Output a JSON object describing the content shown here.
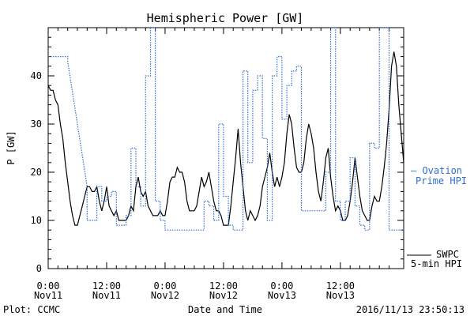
{
  "chart_data": {
    "type": "line",
    "title": "Hemispheric Power [GW]",
    "xlabel": "Date and Time",
    "ylabel": "P [GW]",
    "ylim": [
      0,
      50
    ],
    "xlim_hours": [
      0,
      72
    ],
    "yticks": [
      0,
      10,
      20,
      30,
      40
    ],
    "xticks": [
      {
        "t": 0,
        "time": "0:00",
        "date": "Nov11"
      },
      {
        "t": 12,
        "time": "12:00",
        "date": "Nov11"
      },
      {
        "t": 24,
        "time": "0:00",
        "date": "Nov12"
      },
      {
        "t": 36,
        "time": "12:00",
        "date": "Nov12"
      },
      {
        "t": 48,
        "time": "0:00",
        "date": "Nov13"
      },
      {
        "t": 60,
        "time": "12:00",
        "date": "Nov13"
      }
    ],
    "series": [
      {
        "name": "SWPC 5-min HPI",
        "color": "#000000",
        "style": "solid",
        "points": [
          [
            0,
            38
          ],
          [
            0.5,
            37
          ],
          [
            1,
            37
          ],
          [
            1.5,
            35
          ],
          [
            2,
            34
          ],
          [
            2.5,
            30
          ],
          [
            3,
            27
          ],
          [
            3.5,
            22
          ],
          [
            4,
            18
          ],
          [
            4.5,
            14
          ],
          [
            5,
            11
          ],
          [
            5.5,
            9
          ],
          [
            6,
            9
          ],
          [
            6.5,
            11
          ],
          [
            7,
            13
          ],
          [
            7.5,
            15
          ],
          [
            8,
            17
          ],
          [
            8.5,
            17
          ],
          [
            9,
            16
          ],
          [
            9.5,
            16
          ],
          [
            10,
            17
          ],
          [
            10.5,
            14
          ],
          [
            11,
            12
          ],
          [
            11.5,
            14
          ],
          [
            12,
            17
          ],
          [
            12.5,
            13
          ],
          [
            13,
            12
          ],
          [
            13.5,
            11
          ],
          [
            14,
            12
          ],
          [
            14.5,
            10
          ],
          [
            15,
            10
          ],
          [
            15.5,
            10
          ],
          [
            16,
            10
          ],
          [
            16.5,
            11
          ],
          [
            17,
            13
          ],
          [
            17.5,
            12
          ],
          [
            18,
            17
          ],
          [
            18.5,
            19
          ],
          [
            19,
            16
          ],
          [
            19.5,
            15
          ],
          [
            20,
            16
          ],
          [
            20.5,
            13
          ],
          [
            21,
            12
          ],
          [
            21.5,
            11
          ],
          [
            22,
            11
          ],
          [
            22.5,
            11
          ],
          [
            23,
            12
          ],
          [
            23.5,
            11
          ],
          [
            24,
            11
          ],
          [
            24.5,
            14
          ],
          [
            25,
            18
          ],
          [
            25.5,
            19
          ],
          [
            26,
            19
          ],
          [
            26.5,
            21
          ],
          [
            27,
            20
          ],
          [
            27.5,
            20
          ],
          [
            28,
            18
          ],
          [
            28.5,
            14
          ],
          [
            29,
            12
          ],
          [
            29.5,
            12
          ],
          [
            30,
            12
          ],
          [
            30.5,
            13
          ],
          [
            31,
            16
          ],
          [
            31.5,
            19
          ],
          [
            32,
            17
          ],
          [
            32.5,
            18
          ],
          [
            33,
            20
          ],
          [
            33.5,
            17
          ],
          [
            34,
            14
          ],
          [
            34.5,
            12
          ],
          [
            35,
            12
          ],
          [
            35.5,
            11
          ],
          [
            36,
            9
          ],
          [
            36.5,
            9
          ],
          [
            37,
            9
          ],
          [
            37.5,
            13
          ],
          [
            38,
            18
          ],
          [
            38.5,
            23
          ],
          [
            39,
            29
          ],
          [
            39.5,
            22
          ],
          [
            40,
            17
          ],
          [
            40.5,
            12
          ],
          [
            41,
            10
          ],
          [
            41.5,
            12
          ],
          [
            42,
            11
          ],
          [
            42.5,
            10
          ],
          [
            43,
            11
          ],
          [
            43.5,
            13
          ],
          [
            44,
            17
          ],
          [
            44.5,
            19
          ],
          [
            45,
            21
          ],
          [
            45.5,
            24
          ],
          [
            46,
            20
          ],
          [
            46.5,
            17
          ],
          [
            47,
            19
          ],
          [
            47.5,
            17
          ],
          [
            48,
            19
          ],
          [
            48.5,
            22
          ],
          [
            49,
            28
          ],
          [
            49.5,
            32
          ],
          [
            50,
            30
          ],
          [
            50.5,
            25
          ],
          [
            51,
            21
          ],
          [
            51.5,
            20
          ],
          [
            52,
            20
          ],
          [
            52.5,
            22
          ],
          [
            53,
            27
          ],
          [
            53.5,
            30
          ],
          [
            54,
            28
          ],
          [
            54.5,
            25
          ],
          [
            55,
            20
          ],
          [
            55.5,
            16
          ],
          [
            56,
            14
          ],
          [
            56.5,
            18
          ],
          [
            57,
            23
          ],
          [
            57.5,
            25
          ],
          [
            58,
            19
          ],
          [
            58.5,
            15
          ],
          [
            59,
            12
          ],
          [
            59.5,
            13
          ],
          [
            60,
            12
          ],
          [
            60.5,
            10
          ],
          [
            61,
            10
          ],
          [
            61.5,
            11
          ],
          [
            62,
            14
          ],
          [
            62.5,
            18
          ],
          [
            63,
            23
          ],
          [
            63.5,
            19
          ],
          [
            64,
            15
          ],
          [
            64.5,
            12
          ],
          [
            65,
            11
          ],
          [
            65.5,
            10
          ],
          [
            66,
            10
          ],
          [
            66.5,
            13
          ],
          [
            67,
            15
          ],
          [
            67.5,
            14
          ],
          [
            68,
            14
          ],
          [
            68.5,
            17
          ],
          [
            69,
            21
          ],
          [
            69.5,
            26
          ],
          [
            70,
            33
          ],
          [
            70.5,
            42
          ],
          [
            71,
            45
          ],
          [
            71.5,
            42
          ],
          [
            72,
            34
          ],
          [
            72.5,
            28
          ],
          [
            73,
            22
          ]
        ]
      },
      {
        "name": "Ovation Prime HPI",
        "color": "#2f6fd1",
        "style": "dotted",
        "points": [
          [
            0,
            44
          ],
          [
            4,
            44
          ],
          [
            4,
            43
          ],
          [
            6,
            30
          ],
          [
            8,
            17
          ],
          [
            8,
            10
          ],
          [
            10,
            10
          ],
          [
            10,
            17
          ],
          [
            11,
            17
          ],
          [
            11,
            14
          ],
          [
            12,
            14
          ],
          [
            12,
            15
          ],
          [
            13,
            15
          ],
          [
            13,
            16
          ],
          [
            14,
            16
          ],
          [
            14,
            9
          ],
          [
            16,
            9
          ],
          [
            16,
            11
          ],
          [
            17,
            11
          ],
          [
            17,
            25
          ],
          [
            18,
            25
          ],
          [
            18,
            17
          ],
          [
            19,
            17
          ],
          [
            19,
            13
          ],
          [
            20,
            13
          ],
          [
            20,
            40
          ],
          [
            21,
            40
          ],
          [
            21,
            50
          ],
          [
            22,
            50
          ],
          [
            22,
            14
          ],
          [
            23,
            14
          ],
          [
            23,
            10
          ],
          [
            24,
            10
          ],
          [
            24,
            8
          ],
          [
            32,
            8
          ],
          [
            32,
            14
          ],
          [
            33,
            14
          ],
          [
            33,
            13
          ],
          [
            34,
            13
          ],
          [
            34,
            10
          ],
          [
            35,
            10
          ],
          [
            35,
            30
          ],
          [
            36,
            30
          ],
          [
            36,
            15
          ],
          [
            37,
            15
          ],
          [
            37,
            9
          ],
          [
            38,
            9
          ],
          [
            38,
            8
          ],
          [
            39,
            8
          ],
          [
            39,
            8
          ],
          [
            40,
            8
          ],
          [
            40,
            41
          ],
          [
            41,
            41
          ],
          [
            41,
            22
          ],
          [
            42,
            22
          ],
          [
            42,
            37
          ],
          [
            43,
            37
          ],
          [
            43,
            40
          ],
          [
            44,
            40
          ],
          [
            44,
            27
          ],
          [
            45,
            27
          ],
          [
            45,
            10
          ],
          [
            46,
            10
          ],
          [
            46,
            40
          ],
          [
            47,
            40
          ],
          [
            47,
            44
          ],
          [
            48,
            44
          ],
          [
            48,
            31
          ],
          [
            49,
            31
          ],
          [
            49,
            38
          ],
          [
            50,
            38
          ],
          [
            50,
            41
          ],
          [
            51,
            41
          ],
          [
            51,
            42
          ],
          [
            52,
            42
          ],
          [
            52,
            12
          ],
          [
            57,
            12
          ],
          [
            57,
            20
          ],
          [
            58,
            20
          ],
          [
            58,
            50
          ],
          [
            59,
            50
          ],
          [
            59,
            14
          ],
          [
            60,
            14
          ],
          [
            60,
            10
          ],
          [
            61,
            10
          ],
          [
            61,
            14
          ],
          [
            62,
            14
          ],
          [
            62,
            23
          ],
          [
            63,
            23
          ],
          [
            63,
            13
          ],
          [
            64,
            13
          ],
          [
            64,
            9
          ],
          [
            65,
            9
          ],
          [
            65,
            8
          ],
          [
            66,
            8
          ],
          [
            66,
            26
          ],
          [
            67,
            26
          ],
          [
            67,
            25
          ],
          [
            68,
            25
          ],
          [
            68,
            50
          ],
          [
            70,
            50
          ],
          [
            70,
            8
          ],
          [
            73,
            8
          ]
        ]
      }
    ],
    "legend": {
      "position": "right",
      "entries": [
        {
          "line1": "— Ovation",
          "line2": "Prime HPI",
          "color": "#2f6fd1"
        },
        {
          "line1": "SWPC",
          "line2": "5-min HPI",
          "color": "#000000"
        }
      ]
    },
    "footer": {
      "left": "Plot: CCMC",
      "right": "2016/11/13 23:50:13"
    }
  }
}
